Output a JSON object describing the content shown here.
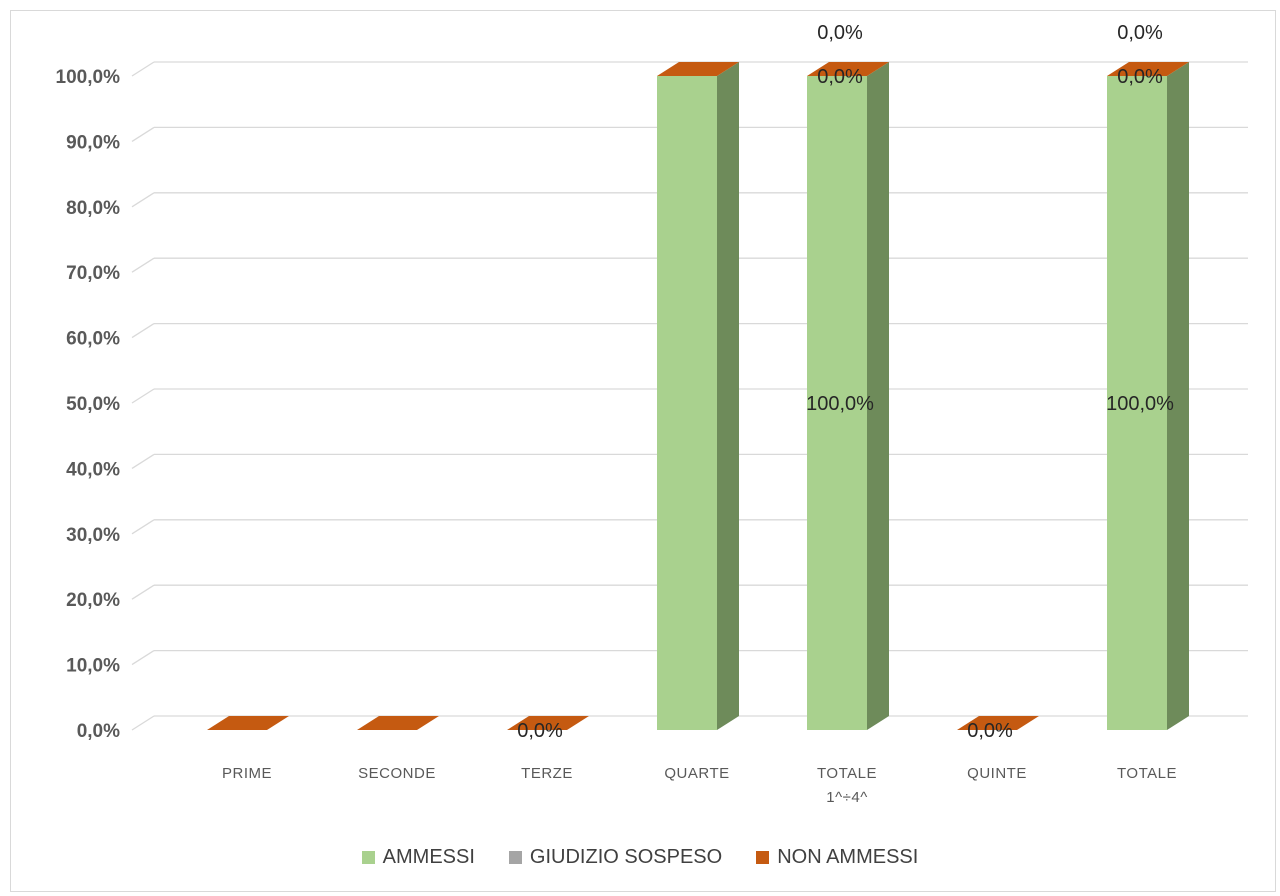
{
  "chart_data": {
    "type": "bar",
    "stacked": true,
    "three_d": true,
    "categories": [
      "PRIME",
      "SECONDE",
      "TERZE",
      "QUARTE",
      "TOTALE 1^÷4^",
      "QUINTE",
      "TOTALE"
    ],
    "category_lines": [
      [
        "PRIME"
      ],
      [
        "SECONDE"
      ],
      [
        "TERZE"
      ],
      [
        "QUARTE"
      ],
      [
        "TOTALE",
        "1^÷4^"
      ],
      [
        "QUINTE"
      ],
      [
        "TOTALE"
      ]
    ],
    "series": [
      {
        "name": "AMMESSI",
        "color": "#a9d18e",
        "side_color": "#6e8b5a",
        "values": [
          0,
          0,
          0,
          100,
          100,
          0,
          100
        ]
      },
      {
        "name": "GIUDIZIO SOSPESO",
        "color": "#a5a5a5",
        "side_color": "#7f7f7f",
        "values": [
          0,
          0,
          0,
          0,
          0,
          0,
          0
        ]
      },
      {
        "name": "NON AMMESSI",
        "color": "#c55a11",
        "side_color": "#a44a0e",
        "values": [
          0,
          0,
          0,
          0,
          0,
          0,
          0
        ]
      }
    ],
    "ylim": [
      0,
      100
    ],
    "yticks": [
      "0,0%",
      "10,0%",
      "20,0%",
      "30,0%",
      "40,0%",
      "50,0%",
      "60,0%",
      "70,0%",
      "80,0%",
      "90,0%",
      "100,0%"
    ],
    "grid": true,
    "legend_position": "bottom",
    "data_labels": [
      {
        "category": "TERZE",
        "series": "NON AMMESSI",
        "text": "0,0%"
      },
      {
        "category": "TOTALE 1^÷4^",
        "series": "AMMESSI",
        "text": "100,0%"
      },
      {
        "category": "TOTALE 1^÷4^",
        "series": "NON AMMESSI",
        "text": "0,0%"
      },
      {
        "category": "TOTALE 1^÷4^",
        "series": "GIUDIZIO SOSPESO",
        "text": "0,0%"
      },
      {
        "category": "QUINTE",
        "series": "NON AMMESSI",
        "text": "0,0%"
      },
      {
        "category": "TOTALE",
        "series": "AMMESSI",
        "text": "100,0%"
      },
      {
        "category": "TOTALE",
        "series": "NON AMMESSI",
        "text": "0,0%"
      },
      {
        "category": "TOTALE",
        "series": "GIUDIZIO SOSPESO",
        "text": "0,0%"
      }
    ]
  }
}
